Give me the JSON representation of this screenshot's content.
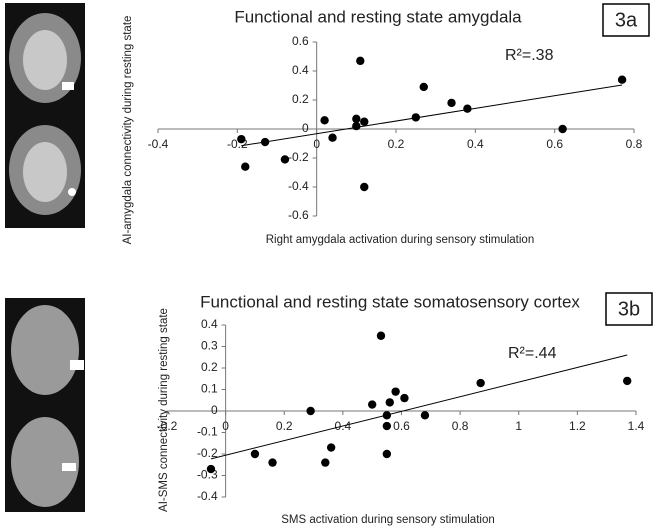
{
  "chart_data": [
    {
      "type": "scatter",
      "title": "Functional and resting state amygdala",
      "x_label": "Right amygdala activation during sensory stimulation",
      "y_label": "AI-amygdala connectivity during resting state",
      "annotation": "R²=.38",
      "panel_label": "3a",
      "color": "#000000",
      "trendline": true,
      "x": [
        -0.19,
        -0.18,
        -0.13,
        -0.08,
        0.02,
        0.04,
        0.1,
        0.1,
        0.11,
        0.12,
        0.12,
        0.27,
        0.25,
        0.34,
        0.38,
        0.62,
        0.77
      ],
      "y": [
        -0.07,
        -0.26,
        -0.09,
        -0.21,
        0.06,
        -0.06,
        0.07,
        0.02,
        0.47,
        0.05,
        -0.4,
        0.29,
        0.08,
        0.18,
        0.14,
        0.0,
        0.34
      ],
      "xlim": [
        -0.4,
        0.8
      ],
      "ylim": [
        -0.6,
        0.6
      ],
      "xticks": [
        -0.4,
        -0.2,
        0,
        0.2,
        0.4,
        0.6,
        0.8
      ],
      "yticks": [
        -0.6,
        -0.4,
        -0.2,
        0,
        0.2,
        0.4,
        0.6
      ]
    },
    {
      "type": "scatter",
      "title": "Functional and resting state somatosensory cortex",
      "x_label": "SMS activation during sensory stimulation",
      "y_label": "AI-SMS connectivity during resting state",
      "annotation": "R²=.44",
      "panel_label": "3b",
      "color": "#000000",
      "trendline": true,
      "x": [
        -0.05,
        0.1,
        0.16,
        0.29,
        0.34,
        0.36,
        0.5,
        0.53,
        0.55,
        0.55,
        0.55,
        0.56,
        0.58,
        0.61,
        0.68,
        0.87,
        1.37
      ],
      "y": [
        -0.27,
        -0.2,
        -0.24,
        0,
        -0.24,
        -0.17,
        0.03,
        0.35,
        -0.02,
        -0.07,
        -0.2,
        0.04,
        0.09,
        0.06,
        -0.02,
        0.13,
        0.14
      ],
      "xlim": [
        -0.2,
        1.4
      ],
      "ylim": [
        -0.4,
        0.4
      ],
      "xticks": [
        -0.2,
        0,
        0.2,
        0.4,
        0.6,
        0.8,
        1,
        1.2,
        1.4
      ],
      "yticks": [
        -0.4,
        -0.3,
        -0.2,
        -0.1,
        0,
        0.1,
        0.2,
        0.3,
        0.4
      ]
    }
  ]
}
